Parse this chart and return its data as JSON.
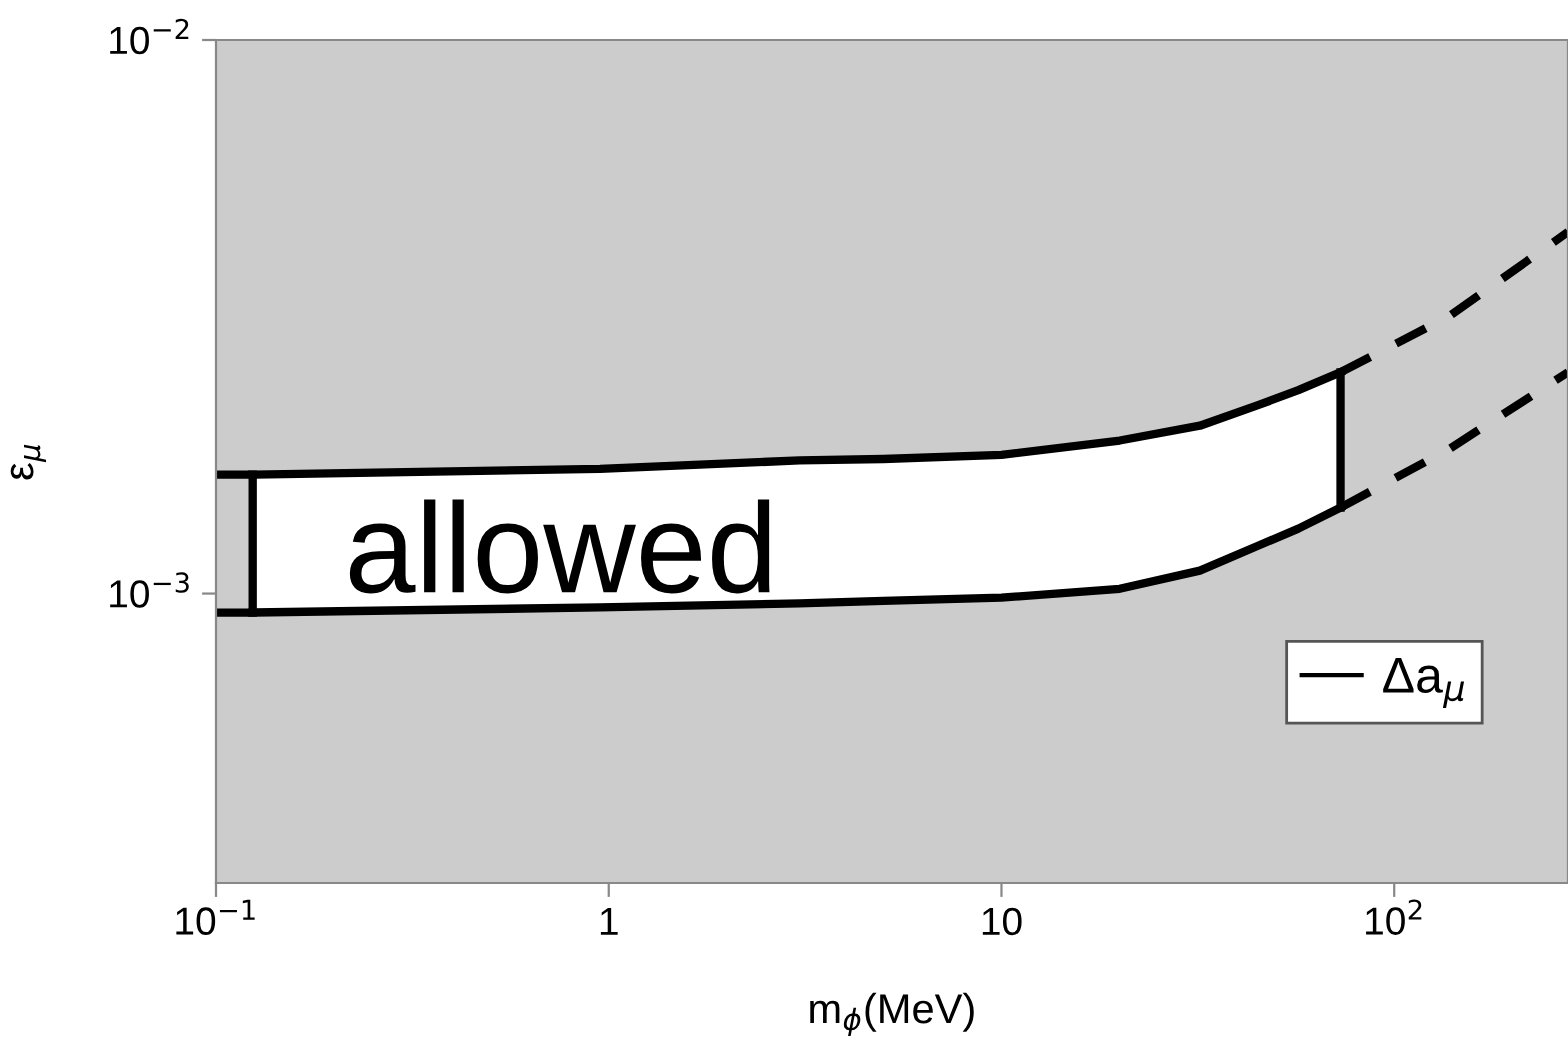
{
  "chart_data": {
    "type": "line",
    "xlabel": "m$_{ϕ}$(MeV)",
    "ylabel": "ε$_{μ}$",
    "log": "xy",
    "xlim": [
      0.1,
      277
    ],
    "ylim": [
      0.0003,
      0.01
    ],
    "xticks": [
      {
        "value": 0.1,
        "label": "10$^{−1}$"
      },
      1,
      10,
      {
        "value": 100,
        "label": "10$^{2}$"
      }
    ],
    "yticks": [
      {
        "value": 0.001,
        "label": "10$^{−3}$"
      },
      {
        "value": 0.01,
        "label": "10$^{−2}$"
      }
    ],
    "grid": false,
    "legend": "bottom right",
    "annotations": [
      "allowed"
    ],
    "series": [
      {
        "name": "Δa$_{μ}$",
        "color": "#000000",
        "x": [
          0.124,
          0.95,
          3.06,
          5,
          10,
          20,
          32,
          45,
          57,
          73
        ],
        "values": [
          0.00164,
          0.00168,
          0.00174,
          0.00175,
          0.00178,
          0.00189,
          0.00201,
          0.00219,
          0.00233,
          0.00251
        ],
        "lower": [
          0.000924,
          0.000944,
          0.00096,
          0.00097,
          0.000983,
          0.00102,
          0.0011,
          0.00122,
          0.00131,
          0.00143
        ],
        "upper": [
          0.00164,
          0.00168,
          0.00174,
          0.00175,
          0.00178,
          0.00189,
          0.00201,
          0.00219,
          0.00233,
          0.00251
        ]
      },
      {
        "color": "#000000",
        "x": [
          0.124,
          0.95,
          3.06,
          5,
          10,
          20,
          32,
          45,
          57,
          73
        ],
        "values": [
          0.000924,
          0.000944,
          0.00096,
          0.00097,
          0.000983,
          0.00102,
          0.0011,
          0.00122,
          0.00131,
          0.00143
        ]
      },
      {
        "color": "#000000",
        "x": [
          0.124,
          0.124
        ],
        "values": [
          0.000924,
          0.00164
        ]
      },
      {
        "color": "#000000",
        "x": [
          73,
          73
        ],
        "values": [
          0.00143,
          0.00251
        ]
      },
      {
        "color": "#000000",
        "line_style": "dashed",
        "x": [
          73,
          139,
          277
        ],
        "values": [
          0.00251,
          0.00318,
          0.0045
        ]
      },
      {
        "color": "#000000",
        "line_style": "dashed",
        "x": [
          73,
          139,
          277
        ],
        "values": [
          0.00143,
          0.00183,
          0.00251
        ]
      },
      {
        "color": "#000000",
        "line_style": "dashed",
        "x": [
          0.1,
          0.124
        ],
        "values": [
          0.00164,
          0.00164
        ]
      },
      {
        "color": "#000000",
        "line_style": "dashed",
        "x": [
          0.1,
          0.124
        ],
        "values": [
          0.000924,
          0.000924
        ]
      }
    ]
  }
}
